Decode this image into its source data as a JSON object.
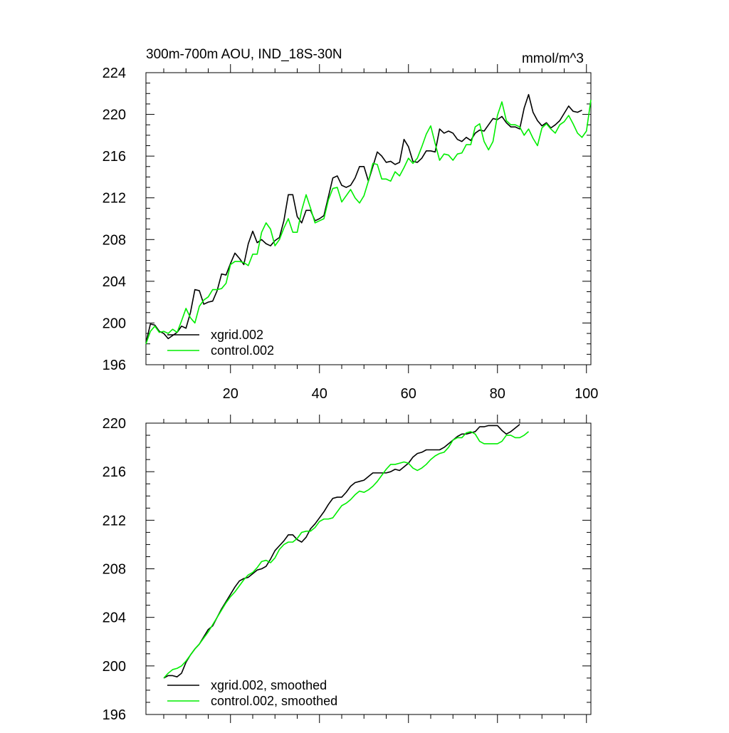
{
  "chart_data": [
    {
      "type": "line",
      "title": "300m-700m AOU, IND_18S-30N",
      "units": "mmol/m^3",
      "xlabel": "",
      "ylabel": "",
      "xlim": [
        1,
        101
      ],
      "ylim": [
        196,
        224
      ],
      "xticks": [
        20,
        40,
        60,
        80,
        100
      ],
      "yticks": [
        196,
        200,
        204,
        208,
        212,
        216,
        220,
        224
      ],
      "legend_position": "bottom-left",
      "x_start": 1,
      "series": [
        {
          "name": "xgrid.002",
          "color": "#000000",
          "values": [
            198.1,
            199.9,
            199.8,
            199.2,
            199.0,
            198.5,
            198.8,
            199.1,
            199.7,
            199.5,
            201.0,
            203.2,
            203.1,
            201.8,
            202.0,
            202.1,
            203.1,
            204.7,
            204.6,
            205.7,
            206.7,
            206.2,
            205.6,
            207.6,
            208.8,
            207.7,
            208.0,
            207.6,
            207.4,
            207.9,
            208.2,
            209.8,
            212.3,
            212.3,
            210.2,
            209.6,
            210.8,
            210.8,
            209.8,
            210.0,
            210.3,
            212.1,
            213.9,
            214.1,
            213.2,
            213.0,
            213.2,
            213.9,
            215.0,
            215.0,
            213.6,
            215.0,
            216.4,
            216.0,
            215.4,
            215.5,
            215.2,
            215.4,
            217.6,
            216.9,
            215.5,
            215.4,
            215.8,
            216.5,
            216.5,
            216.4,
            218.6,
            218.2,
            218.4,
            218.2,
            217.6,
            217.4,
            217.8,
            217.5,
            218.2,
            218.5,
            218.4,
            219.0,
            219.6,
            219.5,
            219.8,
            219.2,
            218.8,
            218.8,
            218.6,
            220.6,
            221.9,
            220.2,
            219.4,
            218.9,
            219.2,
            218.7,
            219.0,
            219.4,
            220.1,
            220.8,
            220.3,
            220.2,
            220.4
          ]
        },
        {
          "name": "control.002",
          "color": "#00ee00",
          "values": [
            198.0,
            199.2,
            199.7,
            199.1,
            199.2,
            199.0,
            199.4,
            199.1,
            200.2,
            201.4,
            200.5,
            200.0,
            201.6,
            202.2,
            202.5,
            203.2,
            203.2,
            203.3,
            203.8,
            205.6,
            205.9,
            205.9,
            205.8,
            205.5,
            206.6,
            206.6,
            208.7,
            209.6,
            209.0,
            207.4,
            208.0,
            209.1,
            210.0,
            208.7,
            208.7,
            210.8,
            212.3,
            211.0,
            209.6,
            209.8,
            210.0,
            211.8,
            212.9,
            213.0,
            211.6,
            212.2,
            212.8,
            212.0,
            211.5,
            212.2,
            213.6,
            215.3,
            215.2,
            213.8,
            213.8,
            213.6,
            214.5,
            214.1,
            214.9,
            215.8,
            215.3,
            215.8,
            216.9,
            218.1,
            218.9,
            217.2,
            215.6,
            216.2,
            216.1,
            215.6,
            216.2,
            216.3,
            217.1,
            217.1,
            218.8,
            219.1,
            217.4,
            216.6,
            217.4,
            219.9,
            221.2,
            219.4,
            219.0,
            219.0,
            218.8,
            218.0,
            218.6,
            217.7,
            217.0,
            218.7,
            219.1,
            218.6,
            218.2,
            219.0,
            219.3,
            219.9,
            219.1,
            218.2,
            217.8,
            218.4,
            221.4
          ]
        }
      ]
    },
    {
      "type": "line",
      "title": "",
      "xlabel": "",
      "ylabel": "",
      "xlim": [
        1,
        101
      ],
      "ylim": [
        196,
        220
      ],
      "xticks": [
        20,
        40,
        60,
        80,
        100
      ],
      "yticks": [
        196,
        200,
        204,
        208,
        212,
        216,
        220
      ],
      "legend_position": "bottom-left",
      "x_start": 5,
      "series": [
        {
          "name": "xgrid.002, smoothed",
          "color": "#000000",
          "values": [
            199.0,
            199.2,
            199.2,
            199.1,
            199.4,
            200.3,
            200.9,
            201.4,
            201.8,
            202.4,
            203.0,
            203.3,
            204.0,
            204.7,
            205.3,
            205.9,
            206.5,
            207.0,
            207.2,
            207.3,
            207.6,
            207.9,
            208.0,
            208.2,
            208.8,
            209.5,
            209.9,
            210.3,
            210.8,
            210.8,
            210.4,
            210.2,
            210.6,
            211.3,
            211.7,
            212.2,
            212.7,
            213.3,
            213.8,
            213.9,
            213.9,
            214.3,
            214.8,
            215.1,
            215.2,
            215.3,
            215.6,
            215.9,
            215.9,
            215.9,
            215.9,
            216.0,
            216.2,
            216.1,
            216.4,
            216.7,
            217.2,
            217.5,
            217.6,
            217.8,
            217.8,
            217.8,
            217.8,
            218.0,
            218.3,
            218.6,
            218.9,
            219.1,
            219.1,
            219.2,
            219.3,
            219.7,
            219.7,
            219.8,
            219.8,
            219.8,
            219.4,
            219.1,
            219.3,
            219.6,
            219.9
          ]
        },
        {
          "name": "control.002, smoothed",
          "color": "#00ee00",
          "values": [
            199.0,
            199.4,
            199.7,
            199.8,
            200.0,
            200.4,
            200.9,
            201.4,
            201.8,
            202.3,
            202.8,
            203.4,
            204.0,
            204.6,
            205.2,
            205.7,
            206.1,
            206.6,
            207.1,
            207.5,
            207.7,
            208.1,
            208.6,
            208.7,
            208.5,
            208.9,
            209.6,
            210.0,
            210.2,
            210.2,
            210.5,
            211.0,
            211.1,
            211.1,
            211.4,
            211.9,
            212.1,
            212.1,
            212.2,
            212.7,
            213.2,
            213.4,
            213.7,
            214.1,
            214.4,
            214.3,
            214.5,
            214.8,
            215.2,
            215.7,
            216.2,
            216.6,
            216.6,
            216.7,
            216.8,
            216.7,
            216.3,
            216.1,
            216.3,
            216.6,
            217.0,
            217.3,
            217.5,
            217.6,
            218.0,
            218.6,
            218.8,
            218.8,
            219.2,
            219.3,
            219.1,
            218.5,
            218.3,
            218.3,
            218.3,
            218.3,
            218.5,
            219.0,
            219.0,
            218.8,
            218.8,
            219.0,
            219.3
          ]
        }
      ]
    }
  ]
}
